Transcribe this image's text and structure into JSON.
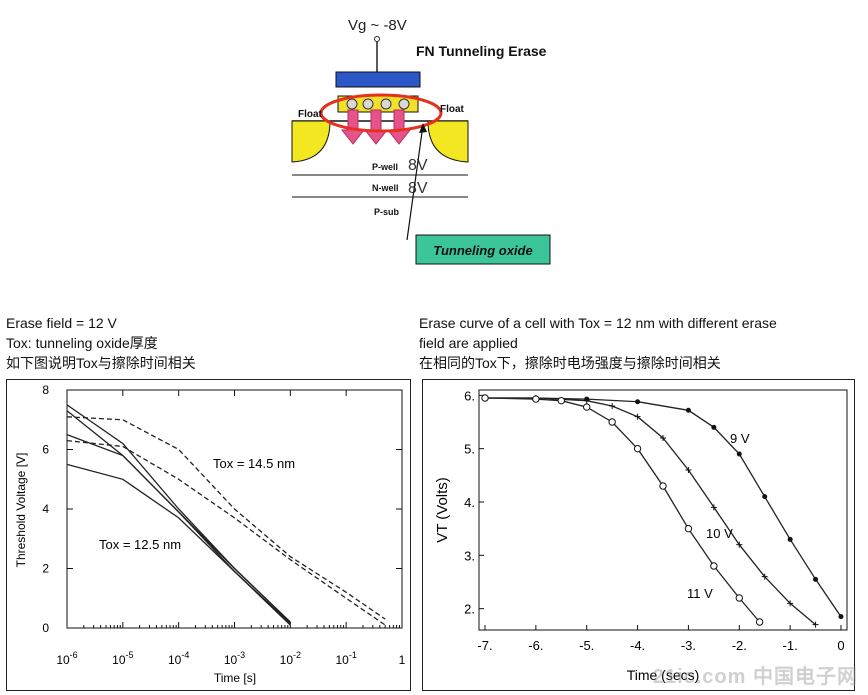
{
  "diagram": {
    "vg_label": "Vg ~ -8V",
    "title": "FN Tunneling Erase",
    "float_left": "Float",
    "float_right": "Float",
    "pwell": "P-well",
    "pwell_v": "8V",
    "nwell": "N-well",
    "nwell_v": "8V",
    "psub": "P-sub",
    "tunneling_oxide": "Tunneling oxide"
  },
  "left_caption": {
    "line1": "Erase field = 12 V",
    "line2": "Tox: tunneling oxide厚度",
    "line3": "如下图说明Tox与擦除时间相关"
  },
  "right_caption": {
    "line1": "Erase curve of a cell with Tox = 12 nm with different erase",
    "line2": "field are applied",
    "line3": "在相同的Tox下，擦除时电场强度与擦除时间相关"
  },
  "chart_data": [
    {
      "type": "line",
      "xlabel": "Time [s]",
      "ylabel": "Threshold Voltage [V]",
      "x_scale": "log",
      "xlim": [
        1e-06,
        1
      ],
      "ylim": [
        0,
        8
      ],
      "x_ticks": [
        "10-6",
        "10-5",
        "10-4",
        "10-3",
        "10-2",
        "10-1",
        "1"
      ],
      "y_ticks": [
        "0",
        "2",
        "4",
        "6",
        "8"
      ],
      "annotations": [
        "Tox = 14.5 nm",
        "Tox = 12.5 nm"
      ],
      "series": [
        {
          "group": "Tox = 12.5 nm",
          "style": "solid",
          "x": [
            1e-06,
            1e-05,
            0.0001,
            0.001,
            0.01
          ],
          "y": [
            7.5,
            6.2,
            4.0,
            2.0,
            0.2
          ]
        },
        {
          "group": "Tox = 12.5 nm",
          "style": "solid",
          "x": [
            1e-06,
            1e-05,
            0.0001,
            0.001,
            0.01
          ],
          "y": [
            7.3,
            5.8,
            3.9,
            2.0,
            0.2
          ]
        },
        {
          "group": "Tox = 12.5 nm",
          "style": "solid",
          "x": [
            1e-06,
            1e-05,
            0.0001,
            0.001,
            0.01
          ],
          "y": [
            6.5,
            5.8,
            3.9,
            1.9,
            0.15
          ]
        },
        {
          "group": "Tox = 12.5 nm",
          "style": "solid",
          "x": [
            1e-06,
            1e-05,
            0.0001,
            0.001,
            0.01
          ],
          "y": [
            5.5,
            5.0,
            3.7,
            1.9,
            0.1
          ]
        },
        {
          "group": "Tox = 14.5 nm",
          "style": "dashed",
          "x": [
            1e-06,
            1e-05,
            0.0001,
            0.001,
            0.01,
            0.1,
            0.5
          ],
          "y": [
            7.1,
            7.0,
            6.0,
            4.0,
            2.4,
            1.2,
            0.3
          ]
        },
        {
          "group": "Tox = 14.5 nm",
          "style": "dashed",
          "x": [
            1e-06,
            1e-05,
            0.0001,
            0.001,
            0.01,
            0.1,
            0.5
          ],
          "y": [
            6.3,
            6.1,
            5.0,
            3.7,
            2.3,
            1.0,
            0.1
          ]
        }
      ]
    },
    {
      "type": "line",
      "xlabel": "Time (secs)",
      "ylabel": "VT (Volts)",
      "xlim": [
        -7,
        0
      ],
      "ylim": [
        1.6,
        6.1
      ],
      "x_ticks": [
        "-7.",
        "-6.",
        "-5.",
        "-4.",
        "-3.",
        "-2.",
        "-1.",
        "0"
      ],
      "y_ticks": [
        "2.",
        "3.",
        "4.",
        "5.",
        "6."
      ],
      "annotations": [
        "9 V",
        "10 V",
        "11 V"
      ],
      "series": [
        {
          "name": "9 V",
          "marker": "filled-dot",
          "x": [
            -7,
            -6,
            -5,
            -4,
            -3,
            -2.5,
            -2,
            -1.5,
            -1,
            -0.5,
            0
          ],
          "y": [
            5.95,
            5.95,
            5.93,
            5.88,
            5.72,
            5.4,
            4.9,
            4.1,
            3.3,
            2.55,
            1.85
          ]
        },
        {
          "name": "10 V",
          "marker": "plus",
          "x": [
            -7,
            -6,
            -5,
            -4.5,
            -4,
            -3.5,
            -3,
            -2.5,
            -2,
            -1.5,
            -1,
            -0.5
          ],
          "y": [
            5.95,
            5.95,
            5.9,
            5.8,
            5.6,
            5.2,
            4.6,
            3.9,
            3.2,
            2.6,
            2.1,
            1.7
          ]
        },
        {
          "name": "11 V",
          "marker": "open-circle",
          "x": [
            -7,
            -6,
            -5.5,
            -5,
            -4.5,
            -4,
            -3.5,
            -3,
            -2.5,
            -2,
            -1.6
          ],
          "y": [
            5.95,
            5.93,
            5.9,
            5.78,
            5.5,
            5.0,
            4.3,
            3.5,
            2.8,
            2.2,
            1.75
          ]
        }
      ]
    }
  ],
  "watermark": "21ic.com 中国电子网"
}
